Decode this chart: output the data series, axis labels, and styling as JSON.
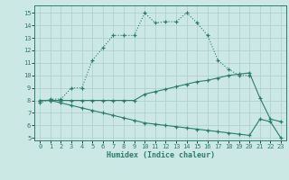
{
  "xlabel": "Humidex (Indice chaleur)",
  "bg_color": "#cce8e4",
  "line_color": "#2a7d6e",
  "grid_color": "#aaceca",
  "xlim": [
    -0.5,
    23.5
  ],
  "ylim": [
    4.8,
    15.6
  ],
  "yticks": [
    5,
    6,
    7,
    8,
    9,
    10,
    11,
    12,
    13,
    14,
    15
  ],
  "xticks": [
    0,
    1,
    2,
    3,
    4,
    5,
    6,
    7,
    8,
    9,
    10,
    11,
    12,
    13,
    14,
    15,
    16,
    17,
    18,
    19,
    20,
    21,
    22,
    23
  ],
  "line1_x": [
    0,
    1,
    2,
    3,
    4,
    5,
    6,
    7,
    8,
    9,
    10,
    11,
    12,
    13,
    14,
    15,
    16,
    17,
    18,
    19,
    20
  ],
  "line1_y": [
    7.8,
    8.1,
    8.1,
    9.0,
    9.0,
    11.2,
    12.2,
    13.2,
    13.2,
    13.2,
    15.0,
    14.2,
    14.3,
    14.3,
    15.0,
    14.2,
    13.2,
    11.2,
    10.5,
    10.0,
    10.0
  ],
  "line2_x": [
    0,
    1,
    2,
    3,
    4,
    5,
    6,
    7,
    8,
    9,
    10,
    11,
    12,
    13,
    14,
    15,
    16,
    17,
    18,
    19,
    20,
    21,
    22,
    23
  ],
  "line2_y": [
    8.0,
    8.0,
    8.0,
    8.0,
    8.0,
    8.0,
    8.0,
    8.0,
    8.0,
    8.0,
    8.5,
    8.7,
    8.9,
    9.1,
    9.3,
    9.5,
    9.6,
    9.8,
    10.0,
    10.1,
    10.2,
    8.2,
    6.5,
    6.3
  ],
  "line3_x": [
    0,
    1,
    2,
    3,
    4,
    5,
    6,
    7,
    8,
    9,
    10,
    11,
    12,
    13,
    14,
    15,
    16,
    17,
    18,
    19,
    20,
    21,
    22,
    23
  ],
  "line3_y": [
    8.0,
    8.0,
    7.8,
    7.6,
    7.4,
    7.2,
    7.0,
    6.8,
    6.6,
    6.4,
    6.2,
    6.1,
    6.0,
    5.9,
    5.8,
    5.7,
    5.6,
    5.5,
    5.4,
    5.3,
    5.2,
    6.5,
    6.3,
    5.0
  ]
}
